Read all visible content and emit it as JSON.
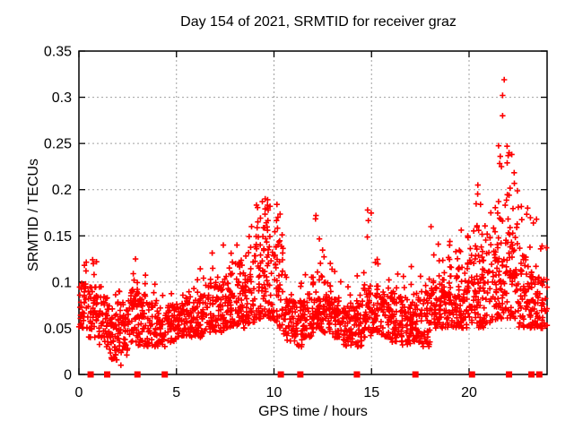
{
  "chart_data": {
    "type": "scatter",
    "title": "Day 154 of 2021, SRMTID for receiver graz",
    "xlabel": "GPS time / hours",
    "ylabel": "SRMTID / TECUs",
    "xlim": [
      0,
      24
    ],
    "ylim": [
      0,
      0.35
    ],
    "xticks": [
      {
        "v": 0,
        "label": "0"
      },
      {
        "v": 5,
        "label": "5"
      },
      {
        "v": 10,
        "label": "10"
      },
      {
        "v": 15,
        "label": "15"
      },
      {
        "v": 20,
        "label": "20"
      }
    ],
    "yticks": [
      {
        "v": 0.0,
        "label": "0"
      },
      {
        "v": 0.05,
        "label": "0.05"
      },
      {
        "v": 0.1,
        "label": "0.1"
      },
      {
        "v": 0.15,
        "label": "0.15"
      },
      {
        "v": 0.2,
        "label": "0.2"
      },
      {
        "v": 0.25,
        "label": "0.25"
      },
      {
        "v": 0.3,
        "label": "0.3"
      },
      {
        "v": 0.35,
        "label": "0.35"
      }
    ],
    "grid": true,
    "legend": "none",
    "marker": "plus",
    "marker_color": "#ff0000",
    "grid_color": "#a0a0a0",
    "border_color": "#000000",
    "background_color": "#ffffff",
    "seed": 7,
    "bins_format": "[hour_start (bin width 0.5h), n_points, y_min, y_dense_top, y_tail_top, n_tail_points] — statistical envelope read from the plot; point cloud is regenerated deterministically from these",
    "bins": [
      [
        0.0,
        40,
        0.05,
        0.1,
        0.122,
        3
      ],
      [
        0.5,
        42,
        0.04,
        0.095,
        0.125,
        3
      ],
      [
        1.0,
        45,
        0.03,
        0.085,
        0.105,
        2
      ],
      [
        1.5,
        45,
        0.015,
        0.075,
        0.1,
        2
      ],
      [
        2.0,
        45,
        0.02,
        0.08,
        0.11,
        2
      ],
      [
        2.5,
        45,
        0.035,
        0.095,
        0.125,
        3
      ],
      [
        3.0,
        42,
        0.03,
        0.09,
        0.108,
        2
      ],
      [
        3.5,
        40,
        0.03,
        0.08,
        0.1,
        2
      ],
      [
        4.0,
        40,
        0.03,
        0.07,
        0.092,
        2
      ],
      [
        4.5,
        42,
        0.035,
        0.075,
        0.095,
        2
      ],
      [
        5.0,
        45,
        0.04,
        0.08,
        0.1,
        2
      ],
      [
        5.5,
        45,
        0.04,
        0.085,
        0.11,
        2
      ],
      [
        6.0,
        45,
        0.04,
        0.09,
        0.122,
        3
      ],
      [
        6.5,
        45,
        0.045,
        0.1,
        0.132,
        3
      ],
      [
        7.0,
        45,
        0.045,
        0.1,
        0.14,
        3
      ],
      [
        7.5,
        45,
        0.05,
        0.11,
        0.132,
        3
      ],
      [
        8.0,
        45,
        0.05,
        0.12,
        0.15,
        3
      ],
      [
        8.5,
        45,
        0.055,
        0.13,
        0.17,
        4
      ],
      [
        9.0,
        48,
        0.06,
        0.15,
        0.186,
        6
      ],
      [
        9.5,
        48,
        0.06,
        0.16,
        0.192,
        8
      ],
      [
        10.0,
        45,
        0.05,
        0.145,
        0.185,
        6
      ],
      [
        10.5,
        40,
        0.035,
        0.09,
        0.12,
        2
      ],
      [
        11.0,
        45,
        0.03,
        0.08,
        0.1,
        2
      ],
      [
        11.5,
        45,
        0.04,
        0.09,
        0.12,
        2
      ],
      [
        12.0,
        45,
        0.045,
        0.11,
        0.172,
        5
      ],
      [
        12.5,
        45,
        0.045,
        0.1,
        0.13,
        3
      ],
      [
        13.0,
        45,
        0.04,
        0.09,
        0.112,
        2
      ],
      [
        13.5,
        45,
        0.03,
        0.08,
        0.1,
        2
      ],
      [
        14.0,
        45,
        0.03,
        0.08,
        0.11,
        2
      ],
      [
        14.5,
        45,
        0.04,
        0.1,
        0.178,
        4
      ],
      [
        15.0,
        45,
        0.045,
        0.1,
        0.13,
        3
      ],
      [
        15.5,
        45,
        0.04,
        0.09,
        0.125,
        2
      ],
      [
        16.0,
        45,
        0.035,
        0.09,
        0.115,
        2
      ],
      [
        16.5,
        45,
        0.03,
        0.085,
        0.11,
        2
      ],
      [
        17.0,
        45,
        0.035,
        0.09,
        0.12,
        2
      ],
      [
        17.5,
        45,
        0.03,
        0.09,
        0.12,
        3
      ],
      [
        18.0,
        45,
        0.05,
        0.105,
        0.16,
        4
      ],
      [
        18.5,
        45,
        0.05,
        0.11,
        0.15,
        4
      ],
      [
        19.0,
        45,
        0.05,
        0.12,
        0.16,
        4
      ],
      [
        19.5,
        45,
        0.05,
        0.13,
        0.16,
        5
      ],
      [
        20.0,
        45,
        0.05,
        0.14,
        0.205,
        6
      ],
      [
        20.5,
        45,
        0.05,
        0.14,
        0.2,
        5
      ],
      [
        21.0,
        45,
        0.055,
        0.15,
        0.19,
        5
      ],
      [
        21.5,
        48,
        0.06,
        0.17,
        0.25,
        8
      ],
      [
        22.0,
        48,
        0.06,
        0.17,
        0.25,
        8
      ],
      [
        22.5,
        45,
        0.05,
        0.13,
        0.185,
        5
      ],
      [
        23.0,
        45,
        0.05,
        0.12,
        0.18,
        4
      ],
      [
        23.5,
        42,
        0.05,
        0.11,
        0.14,
        3
      ]
    ],
    "outliers": [
      [
        21.8,
        0.319
      ],
      [
        21.72,
        0.302
      ],
      [
        21.72,
        0.28
      ],
      [
        21.95,
        0.247
      ],
      [
        22.05,
        0.24
      ],
      [
        21.6,
        0.236
      ],
      [
        9.55,
        0.19
      ],
      [
        9.4,
        0.187
      ],
      [
        10.15,
        0.184
      ],
      [
        9.8,
        0.182
      ],
      [
        12.15,
        0.172
      ],
      [
        14.8,
        0.178
      ],
      [
        20.45,
        0.205
      ],
      [
        18.05,
        0.16
      ],
      [
        7.4,
        0.14
      ],
      [
        2.9,
        0.125
      ],
      [
        0.9,
        0.122
      ],
      [
        23.0,
        0.18
      ],
      [
        2.15,
        0.01
      ]
    ],
    "zero_line_square_hours": [
      0.6,
      1.45,
      3.0,
      4.4,
      10.35,
      11.35,
      14.25,
      17.25,
      20.15,
      22.05,
      23.2,
      23.6
    ]
  }
}
